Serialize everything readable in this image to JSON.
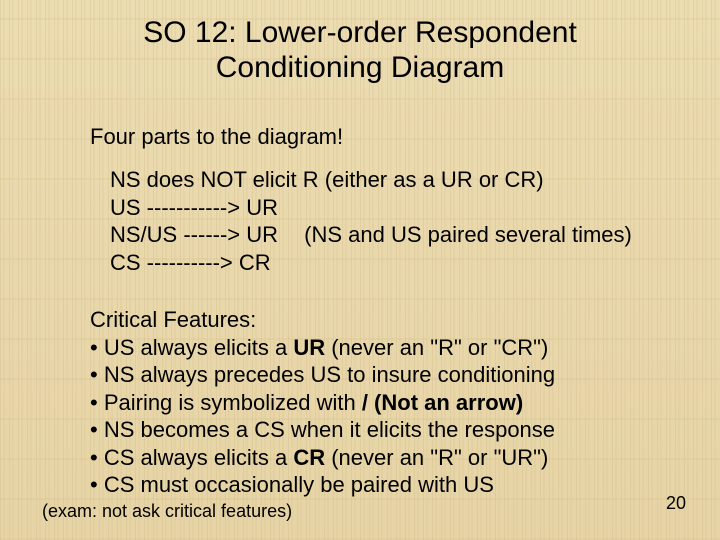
{
  "colors": {
    "background_base": "#e9d9ae",
    "text": "#000000"
  },
  "title_line1": "SO 12: Lower-order Respondent",
  "title_line2": "Conditioning Diagram",
  "subtitle": "Four parts to the diagram!",
  "diagram": {
    "line1": "NS does NOT elicit R (either as a UR or CR)",
    "line2": "US -----------> UR",
    "line3_left": "NS/US ------> UR",
    "line3_paren": "(NS and US paired several times)",
    "line4": "CS ----------> CR"
  },
  "critical": {
    "heading": "Critical Features:",
    "b1_pre": "• US always elicits a ",
    "b1_bold": "UR",
    "b1_post": " (never an \"R\" or \"CR\")",
    "b2": "• NS always precedes US to insure conditioning",
    "b3_pre": "• Pairing is symbolized with ",
    "b3_bold": "/   (Not an arrow)",
    "b4": "• NS becomes a CS when it elicits the response",
    "b5_pre": "• CS always elicits a ",
    "b5_bold": "CR",
    "b5_post": " (never an \"R\" or \"UR\")",
    "b6": "• CS must occasionally be paired with US"
  },
  "footnote": "(exam: not ask critical features)",
  "page_number": "20"
}
